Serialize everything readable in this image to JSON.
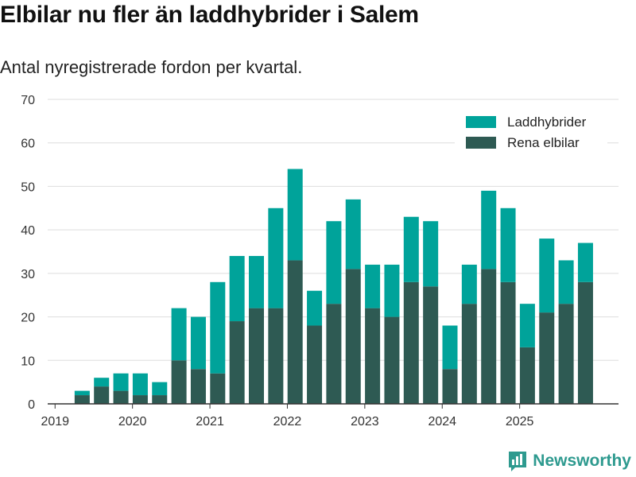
{
  "header": {
    "title": "Elbilar nu fler än laddhybrider i Salem",
    "subtitle": "Antal nyregistrerade fordon per kvartal."
  },
  "brand": {
    "name": "Newsworthy",
    "icon": "newsworthy-logo-icon"
  },
  "colors": {
    "laddhybrider": "#00a39a",
    "elbilar": "#2e5a53",
    "grid": "#dddddd",
    "axis": "#333333"
  },
  "chart_data": {
    "type": "bar",
    "stacked": true,
    "title": "Elbilar nu fler än laddhybrider i Salem",
    "subtitle": "Antal nyregistrerade fordon per kvartal.",
    "xlabel": "",
    "ylabel": "",
    "ylim": [
      0,
      70
    ],
    "yticks": [
      0,
      10,
      20,
      30,
      40,
      50,
      60,
      70
    ],
    "xtick_labels": [
      "2019",
      "2020",
      "2021",
      "2022",
      "2023",
      "2024",
      "2025"
    ],
    "categories": [
      "2019Q1",
      "2019Q2",
      "2019Q3",
      "2019Q4",
      "2020Q1",
      "2020Q2",
      "2020Q3",
      "2020Q4",
      "2021Q1",
      "2021Q2",
      "2021Q3",
      "2021Q4",
      "2022Q1",
      "2022Q2",
      "2022Q3",
      "2022Q4",
      "2023Q1",
      "2023Q2",
      "2023Q3",
      "2023Q4",
      "2024Q1",
      "2024Q2",
      "2024Q3",
      "2024Q4",
      "2025Q1",
      "2025Q2",
      "2025Q3",
      "2025Q4"
    ],
    "legend_position": "top-right",
    "series": [
      {
        "name": "Rena elbilar",
        "values": [
          0,
          2,
          4,
          3,
          2,
          2,
          10,
          8,
          7,
          19,
          22,
          22,
          33,
          18,
          23,
          31,
          22,
          20,
          28,
          27,
          8,
          23,
          31,
          28,
          13,
          21,
          23,
          28
        ]
      },
      {
        "name": "Laddhybrider",
        "values": [
          0,
          1,
          2,
          4,
          5,
          3,
          12,
          12,
          21,
          15,
          12,
          23,
          21,
          8,
          19,
          16,
          10,
          12,
          15,
          15,
          10,
          9,
          18,
          17,
          10,
          17,
          10,
          9
        ]
      }
    ],
    "legend": [
      "Laddhybrider",
      "Rena elbilar"
    ]
  }
}
